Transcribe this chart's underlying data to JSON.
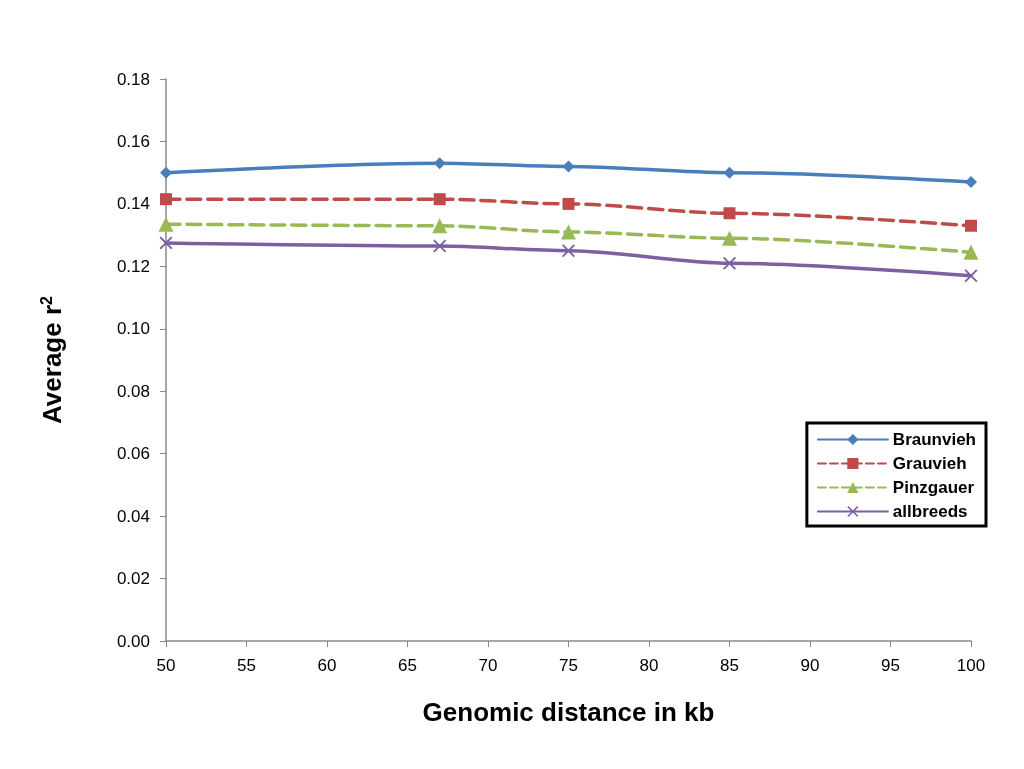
{
  "chart_data": {
    "type": "line",
    "xlabel": "Genomic distance in kb",
    "ylabel": "Average r$^{2}$",
    "x": [
      50,
      67,
      75,
      85,
      100
    ],
    "series": [
      {
        "name": "Braunvieh",
        "color": "#4a7ebb",
        "marker": "diamond",
        "line_style": "solid",
        "values": [
          0.15,
          0.153,
          0.152,
          0.15,
          0.147
        ]
      },
      {
        "name": "Grauvieh",
        "color": "#be4b48",
        "marker": "square",
        "line_style": "dashed",
        "values": [
          0.1415,
          0.1415,
          0.14,
          0.137,
          0.133
        ]
      },
      {
        "name": "Pinzgauer",
        "color": "#98b954",
        "marker": "triangle",
        "line_style": "dashed",
        "values": [
          0.1335,
          0.133,
          0.131,
          0.129,
          0.1245
        ]
      },
      {
        "name": "allbreeds",
        "color": "#7d60a0",
        "marker": "cross",
        "line_style": "solid",
        "values": [
          0.1275,
          0.1265,
          0.125,
          0.121,
          0.117
        ]
      }
    ],
    "xlim": [
      50,
      100
    ],
    "xticks": [
      50,
      55,
      60,
      65,
      70,
      75,
      80,
      85,
      90,
      95,
      100
    ],
    "ylim": [
      0,
      0.18
    ],
    "yticks": [
      {
        "value": 0,
        "label": "0.00"
      },
      0.02,
      0.04,
      0.06,
      0.08,
      {
        "value": 0.1,
        "label": "0.10"
      },
      0.12,
      0.14,
      0.16,
      0.18
    ],
    "grid": false,
    "legend": "right"
  }
}
